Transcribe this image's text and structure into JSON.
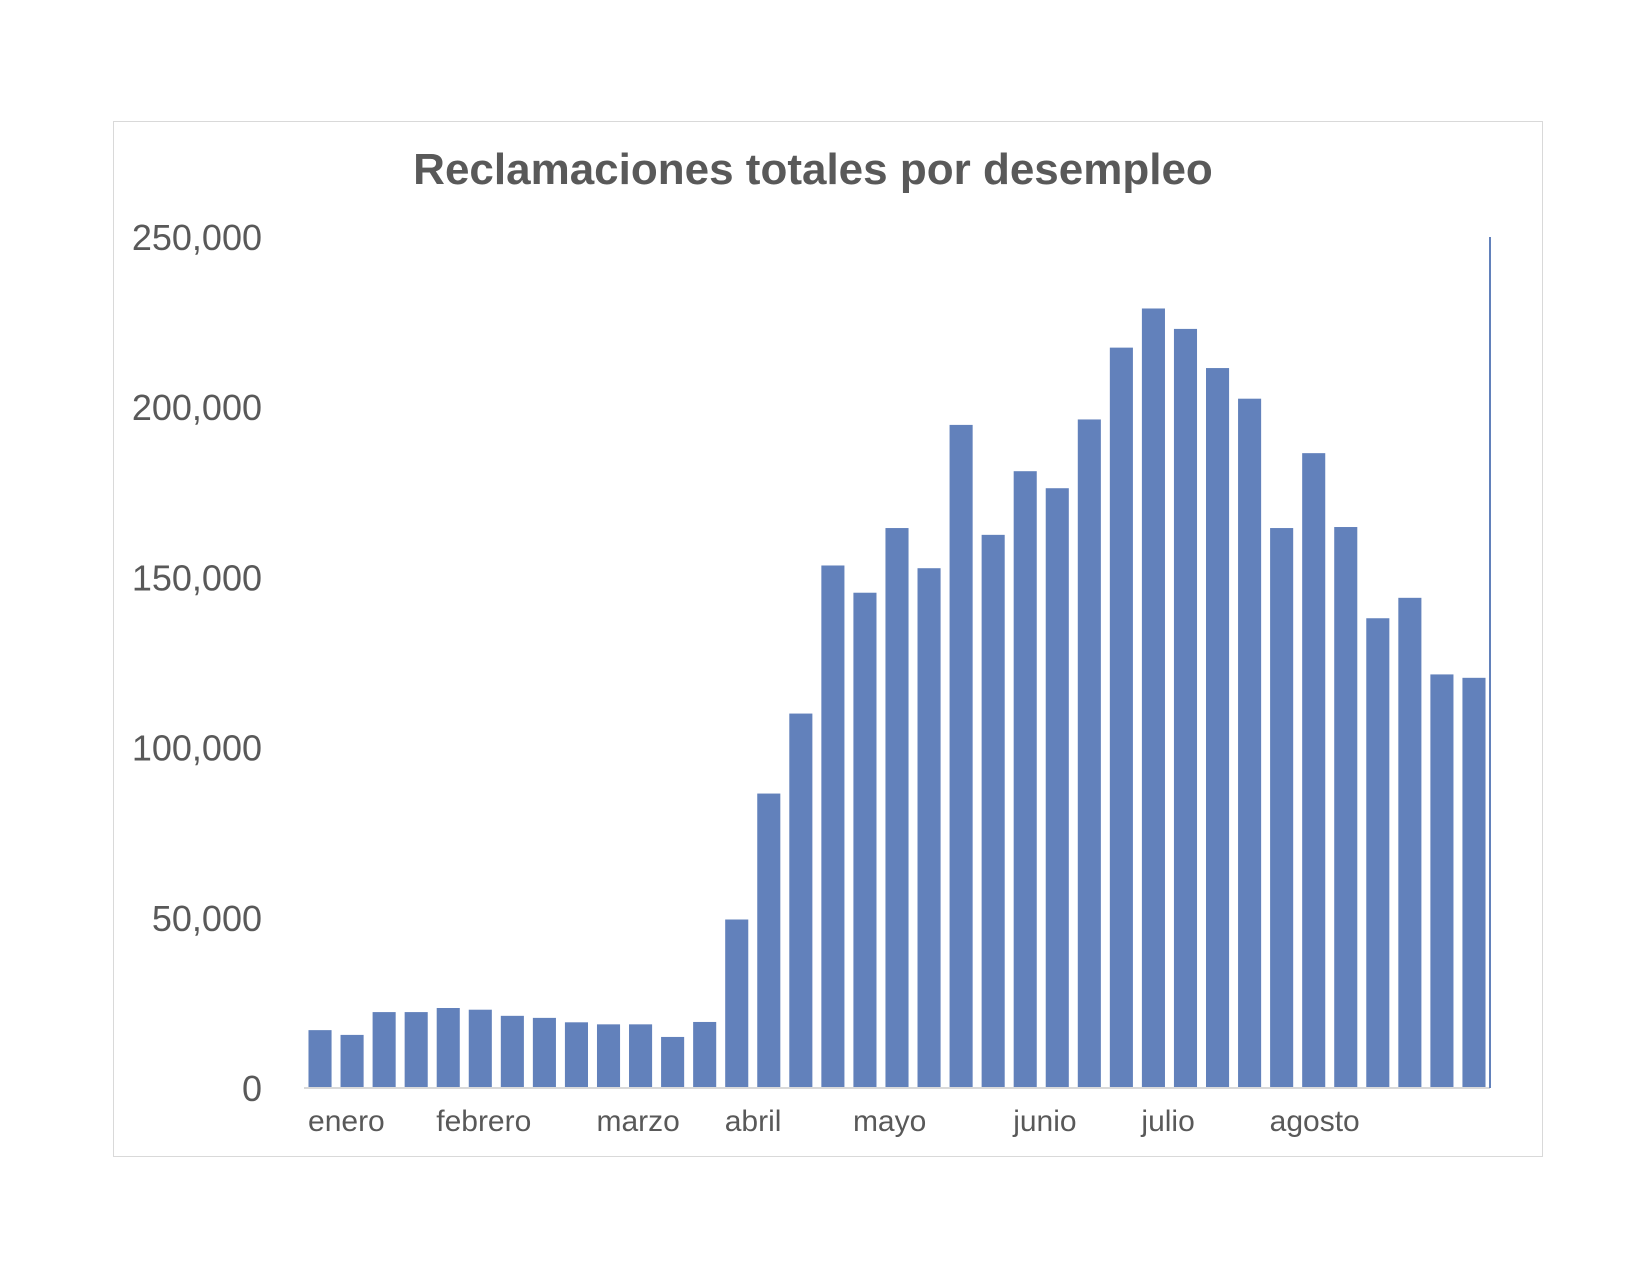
{
  "chart_data": {
    "type": "bar",
    "title": "Reclamaciones totales por desempleo",
    "xlabel": "",
    "ylabel": "",
    "ylim": [
      0,
      250000
    ],
    "yticks": [
      0,
      50000,
      100000,
      150000,
      200000,
      250000
    ],
    "ytick_labels": [
      "0",
      "50,000",
      "100,000",
      "150,000",
      "200,000",
      "250,000"
    ],
    "month_labels": [
      {
        "label": "enero",
        "bar_index": 0
      },
      {
        "label": "febrero",
        "bar_index": 4
      },
      {
        "label": "marzo",
        "bar_index": 9
      },
      {
        "label": "abril",
        "bar_index": 13
      },
      {
        "label": "mayo",
        "bar_index": 17
      },
      {
        "label": "junio",
        "bar_index": 22
      },
      {
        "label": "julio",
        "bar_index": 26
      },
      {
        "label": "agosto",
        "bar_index": 30
      }
    ],
    "grid": false,
    "legend": "none",
    "bar_color": "#6281BB",
    "values": [
      17000,
      15600,
      22300,
      22300,
      23500,
      23000,
      21200,
      20600,
      19300,
      18700,
      18700,
      15000,
      19400,
      49500,
      86500,
      110000,
      153500,
      145500,
      164500,
      152700,
      194800,
      162500,
      181200,
      176200,
      196400,
      217500,
      229000,
      223000,
      211500,
      202500,
      164500,
      186500,
      164800,
      138000,
      144000,
      121500,
      120500
    ]
  }
}
